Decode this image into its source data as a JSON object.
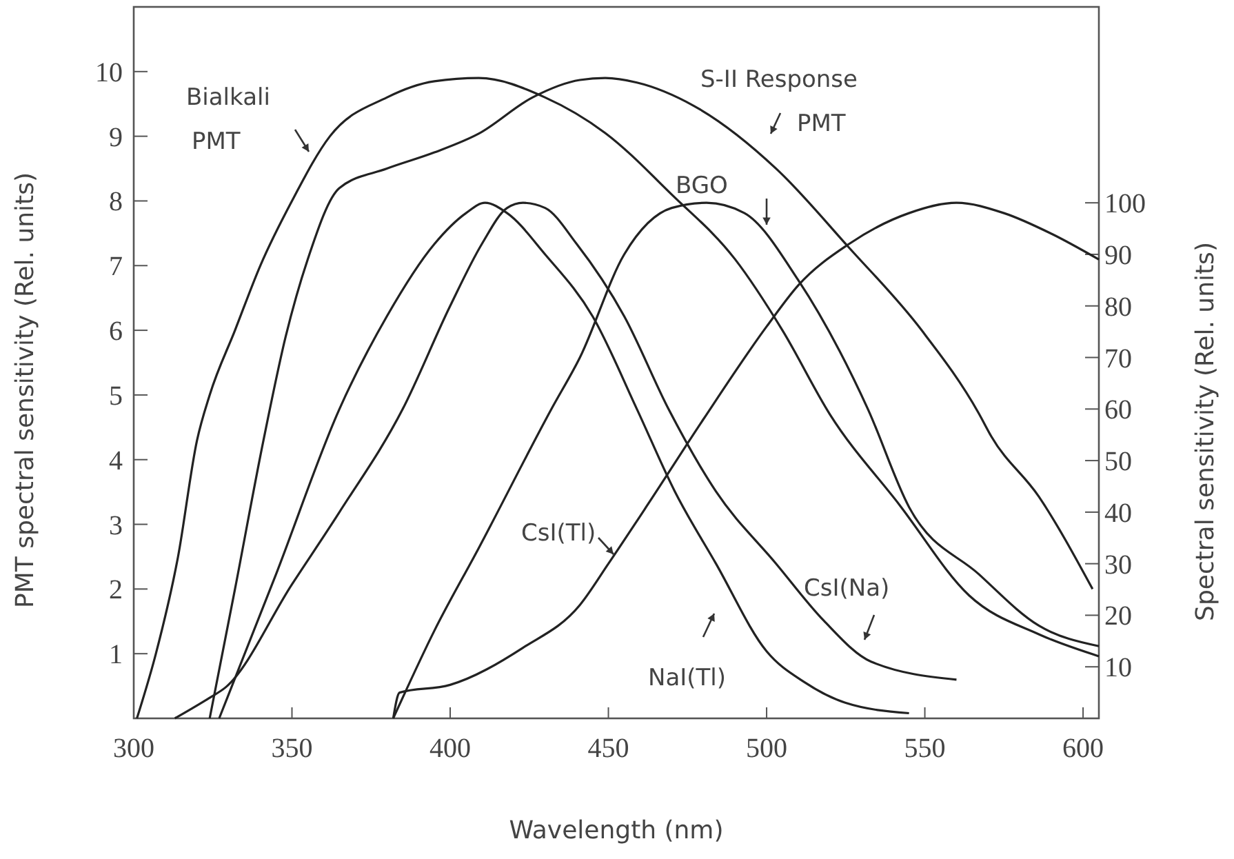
{
  "chart_data": {
    "type": "line",
    "xlabel": "Wavelength (nm)",
    "ylabel": "PMT spectral sensitivity (Rel. units)",
    "y2label": "Spectral sensitivity (Rel. units)",
    "xlim": [
      300,
      605
    ],
    "xticks": [
      300,
      350,
      400,
      450,
      500,
      550,
      600
    ],
    "ylim": [
      0,
      11
    ],
    "yticks": [
      1,
      2,
      3,
      4,
      5,
      6,
      7,
      8,
      9,
      10
    ],
    "y2lim": [
      0,
      138
    ],
    "y2ticks": [
      10,
      20,
      30,
      40,
      50,
      60,
      70,
      80,
      90,
      100
    ],
    "grid": false,
    "marker": "none",
    "line_style": "solid",
    "series": [
      {
        "name": "Bialkali PMT",
        "color": "#222222",
        "x": [
          301,
          307,
          314,
          320,
          324,
          332,
          340,
          350,
          362,
          380,
          395,
          409,
          430,
          449,
          470,
          490,
          505,
          520,
          542,
          564,
          586,
          605
        ],
        "values": [
          0,
          1,
          2.5,
          4.3,
          5,
          6,
          7,
          8,
          9,
          9.6,
          9.85,
          9.9,
          9.6,
          9.05,
          8.1,
          7.1,
          6,
          4.7,
          3.3,
          1.9,
          1.3,
          0.96
        ]
      },
      {
        "name": "S-II Response PMT",
        "color": "#222222",
        "x": [
          324,
          332,
          341,
          348,
          355,
          365,
          380,
          395,
          409,
          426,
          441,
          449,
          459,
          477,
          503,
          526,
          549,
          567,
          571,
          586,
          603
        ],
        "values": [
          0,
          2,
          4.3,
          5.9,
          7.1,
          8.2,
          8.5,
          8.75,
          9.04,
          9.6,
          9.87,
          9.9,
          9.83,
          9.47,
          8.5,
          7.28,
          6,
          4.72,
          4.36,
          3.43,
          2
        ]
      },
      {
        "name": "NaI(Tl)",
        "color": "#222222",
        "axis": "y2",
        "x": [
          327,
          345,
          365,
          380,
          395,
          405,
          411,
          418,
          430,
          445,
          459,
          471,
          484,
          500,
          512,
          525,
          545
        ],
        "values": [
          0,
          28,
          60,
          78,
          92,
          98,
          100,
          98,
          90,
          78,
          60,
          44,
          30,
          13,
          7,
          3,
          1
        ]
      },
      {
        "name": "CsI(Na)",
        "color": "#222222",
        "axis": "y2",
        "x": [
          313,
          324,
          329,
          350,
          365,
          385,
          400,
          410,
          418,
          423,
          430,
          440,
          455,
          469,
          484,
          503,
          518,
          533,
          560
        ],
        "values": [
          0,
          4,
          6,
          26,
          40,
          60,
          80,
          92,
          99,
          100,
          99,
          92,
          78,
          60,
          44,
          30,
          19,
          11,
          7.5
        ]
      },
      {
        "name": "BGO",
        "color": "#222222",
        "axis": "y2",
        "x": [
          382,
          395,
          409,
          432,
          441,
          455,
          470,
          481,
          493,
          510,
          532,
          545,
          567,
          586,
          605
        ],
        "values": [
          0,
          17,
          33,
          60,
          70,
          90,
          99,
          100,
          98,
          85,
          60,
          41,
          28,
          18,
          14
        ]
      },
      {
        "name": "CsI(Tl)",
        "color": "#222222",
        "axis": "y2",
        "x": [
          382,
          384,
          400,
          423,
          441,
          450,
          463,
          480,
          500,
          510,
          526,
          545,
          560,
          575,
          590,
          605
        ],
        "values": [
          0,
          5,
          6.5,
          13.7,
          22,
          30,
          42,
          58,
          76,
          84,
          92,
          98,
          100,
          98,
          94,
          89
        ]
      }
    ]
  }
}
